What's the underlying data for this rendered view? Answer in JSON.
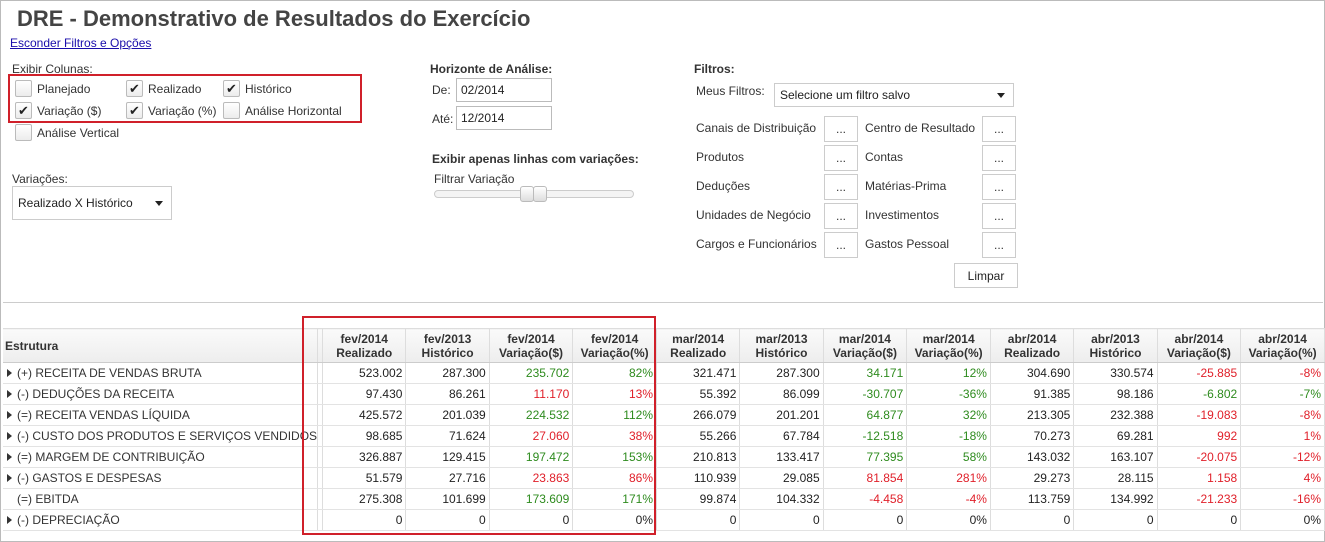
{
  "page": {
    "title": "DRE - Demonstrativo de Resultados do Exercício",
    "toggle_filters": "Esconder Filtros e Opções"
  },
  "columns_panel": {
    "title": "Exibir Colunas:",
    "options": [
      {
        "label": "Planejado",
        "checked": false
      },
      {
        "label": "Realizado",
        "checked": true
      },
      {
        "label": "Histórico",
        "checked": true
      },
      {
        "label": "Variação ($)",
        "checked": true
      },
      {
        "label": "Variação (%)",
        "checked": true
      },
      {
        "label": "Análise Horizontal",
        "checked": false
      },
      {
        "label": "Análise Vertical",
        "checked": false
      }
    ]
  },
  "variations": {
    "title": "Variações:",
    "selected": "Realizado X Histórico"
  },
  "horizon": {
    "title": "Horizonte de Análise:",
    "from_label": "De:",
    "from_value": "02/2014",
    "to_label": "Até:",
    "to_value": "12/2014",
    "only_variations_title": "Exibir apenas linhas com variações:",
    "filter_variation_label": "Filtrar Variação"
  },
  "filters": {
    "title": "Filtros:",
    "saved_label": "Meus Filtros:",
    "saved_selected": "Selecione um filtro salvo",
    "left": [
      "Canais de Distribuição",
      "Produtos",
      "Deduções",
      "Unidades de Negócio",
      "Cargos e Funcionários"
    ],
    "right": [
      "Centro de Resultado",
      "Contas",
      "Matérias-Prima",
      "Investimentos",
      "Gastos Pessoal"
    ],
    "ellipsis": "...",
    "clear_label": "Limpar"
  },
  "grid": {
    "structure_header": "Estrutura",
    "columns": [
      {
        "period": "fev/2014",
        "kind": "Realizado"
      },
      {
        "period": "fev/2013",
        "kind": "Histórico"
      },
      {
        "period": "fev/2014",
        "kind": "Variação($)"
      },
      {
        "period": "fev/2014",
        "kind": "Variação(%)"
      },
      {
        "period": "mar/2014",
        "kind": "Realizado"
      },
      {
        "period": "mar/2013",
        "kind": "Histórico"
      },
      {
        "period": "mar/2014",
        "kind": "Variação($)"
      },
      {
        "period": "mar/2014",
        "kind": "Variação(%)"
      },
      {
        "period": "abr/2014",
        "kind": "Realizado"
      },
      {
        "period": "abr/2013",
        "kind": "Histórico"
      },
      {
        "period": "abr/2014",
        "kind": "Variação($)"
      },
      {
        "period": "abr/2014",
        "kind": "Variação(%)"
      }
    ],
    "rows": [
      {
        "label": "(+) RECEITA DE VENDAS BRUTA",
        "expand": true,
        "cells": [
          [
            "523.002",
            "n"
          ],
          [
            "287.300",
            "n"
          ],
          [
            "235.702",
            "p"
          ],
          [
            "82%",
            "p"
          ],
          [
            "321.471",
            "n"
          ],
          [
            "287.300",
            "n"
          ],
          [
            "34.171",
            "p"
          ],
          [
            "12%",
            "p"
          ],
          [
            "304.690",
            "n"
          ],
          [
            "330.574",
            "n"
          ],
          [
            "-25.885",
            "r"
          ],
          [
            "-8%",
            "r"
          ]
        ]
      },
      {
        "label": "(-) DEDUÇÕES DA RECEITA",
        "expand": true,
        "cells": [
          [
            "97.430",
            "n"
          ],
          [
            "86.261",
            "n"
          ],
          [
            "11.170",
            "r"
          ],
          [
            "13%",
            "r"
          ],
          [
            "55.392",
            "n"
          ],
          [
            "86.099",
            "n"
          ],
          [
            "-30.707",
            "p"
          ],
          [
            "-36%",
            "p"
          ],
          [
            "91.385",
            "n"
          ],
          [
            "98.186",
            "n"
          ],
          [
            "-6.802",
            "p"
          ],
          [
            "-7%",
            "p"
          ]
        ]
      },
      {
        "label": "(=) RECEITA VENDAS LÍQUIDA",
        "expand": true,
        "cells": [
          [
            "425.572",
            "n"
          ],
          [
            "201.039",
            "n"
          ],
          [
            "224.532",
            "p"
          ],
          [
            "112%",
            "p"
          ],
          [
            "266.079",
            "n"
          ],
          [
            "201.201",
            "n"
          ],
          [
            "64.877",
            "p"
          ],
          [
            "32%",
            "p"
          ],
          [
            "213.305",
            "n"
          ],
          [
            "232.388",
            "n"
          ],
          [
            "-19.083",
            "r"
          ],
          [
            "-8%",
            "r"
          ]
        ]
      },
      {
        "label": "(-) CUSTO DOS PRODUTOS E SERVIÇOS VENDIDOS",
        "expand": true,
        "cells": [
          [
            "98.685",
            "n"
          ],
          [
            "71.624",
            "n"
          ],
          [
            "27.060",
            "r"
          ],
          [
            "38%",
            "r"
          ],
          [
            "55.266",
            "n"
          ],
          [
            "67.784",
            "n"
          ],
          [
            "-12.518",
            "p"
          ],
          [
            "-18%",
            "p"
          ],
          [
            "70.273",
            "n"
          ],
          [
            "69.281",
            "n"
          ],
          [
            "992",
            "r"
          ],
          [
            "1%",
            "r"
          ]
        ]
      },
      {
        "label": "(=) MARGEM DE CONTRIBUIÇÃO",
        "expand": true,
        "cells": [
          [
            "326.887",
            "n"
          ],
          [
            "129.415",
            "n"
          ],
          [
            "197.472",
            "p"
          ],
          [
            "153%",
            "p"
          ],
          [
            "210.813",
            "n"
          ],
          [
            "133.417",
            "n"
          ],
          [
            "77.395",
            "p"
          ],
          [
            "58%",
            "p"
          ],
          [
            "143.032",
            "n"
          ],
          [
            "163.107",
            "n"
          ],
          [
            "-20.075",
            "r"
          ],
          [
            "-12%",
            "r"
          ]
        ]
      },
      {
        "label": "(-) GASTOS E DESPESAS",
        "expand": true,
        "cells": [
          [
            "51.579",
            "n"
          ],
          [
            "27.716",
            "n"
          ],
          [
            "23.863",
            "r"
          ],
          [
            "86%",
            "r"
          ],
          [
            "110.939",
            "n"
          ],
          [
            "29.085",
            "n"
          ],
          [
            "81.854",
            "r"
          ],
          [
            "281%",
            "r"
          ],
          [
            "29.273",
            "n"
          ],
          [
            "28.115",
            "n"
          ],
          [
            "1.158",
            "r"
          ],
          [
            "4%",
            "r"
          ]
        ]
      },
      {
        "label": "(=) EBITDA",
        "expand": false,
        "cells": [
          [
            "275.308",
            "n"
          ],
          [
            "101.699",
            "n"
          ],
          [
            "173.609",
            "p"
          ],
          [
            "171%",
            "p"
          ],
          [
            "99.874",
            "n"
          ],
          [
            "104.332",
            "n"
          ],
          [
            "-4.458",
            "r"
          ],
          [
            "-4%",
            "r"
          ],
          [
            "113.759",
            "n"
          ],
          [
            "134.992",
            "n"
          ],
          [
            "-21.233",
            "r"
          ],
          [
            "-16%",
            "r"
          ]
        ]
      },
      {
        "label": "(-) DEPRECIAÇÃO",
        "expand": true,
        "cells": [
          [
            "0",
            "n"
          ],
          [
            "0",
            "n"
          ],
          [
            "0",
            "n"
          ],
          [
            "0%",
            "n"
          ],
          [
            "0",
            "n"
          ],
          [
            "0",
            "n"
          ],
          [
            "0",
            "n"
          ],
          [
            "0%",
            "n"
          ],
          [
            "0",
            "n"
          ],
          [
            "0",
            "n"
          ],
          [
            "0",
            "n"
          ],
          [
            "0%",
            "n"
          ]
        ]
      }
    ]
  },
  "colors": {
    "highlight": "#d0202a",
    "positive": "#2e8b1e",
    "negative": "#e0202a"
  }
}
